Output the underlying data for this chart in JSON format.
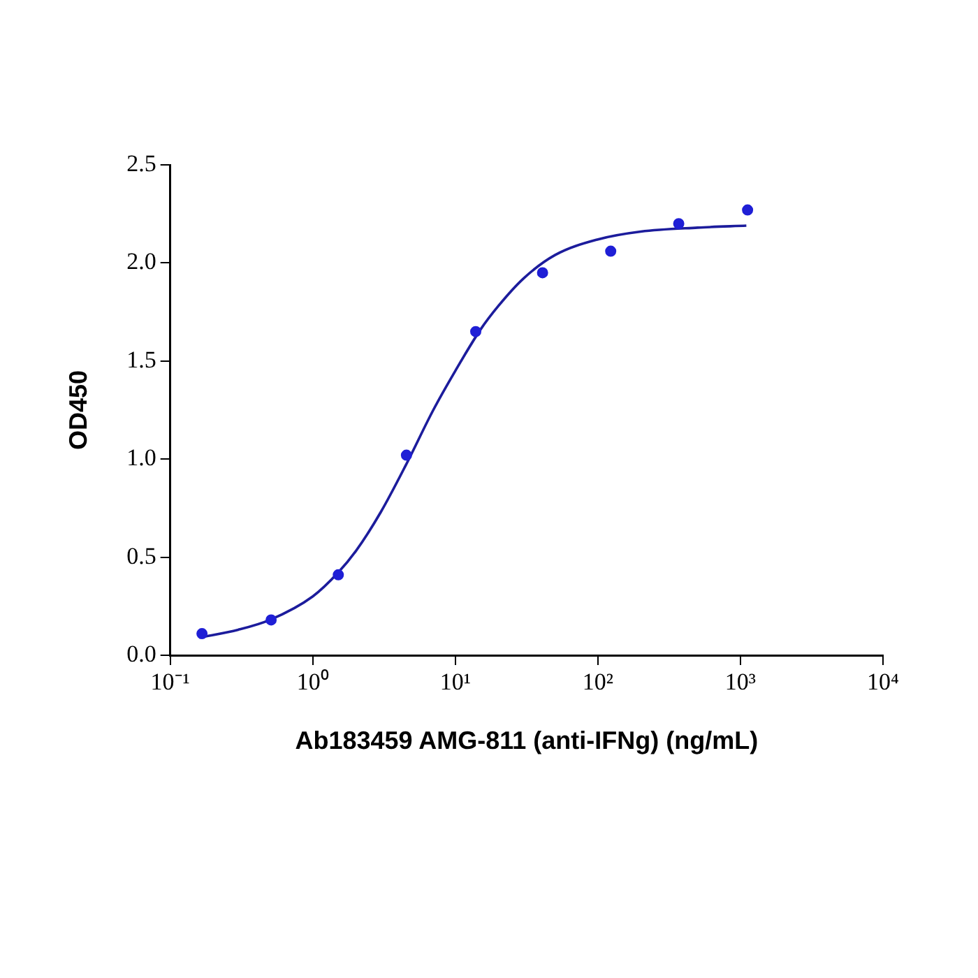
{
  "chart_data": {
    "type": "scatter",
    "xlabel": "Ab183459 AMG-811 (anti-IFNg) (ng/mL)",
    "ylabel": "OD450",
    "log": "x",
    "grid": false,
    "legend": false,
    "marker": "circle",
    "xlim": [
      0.1,
      10000
    ],
    "xticks": [
      {
        "value": 0.1,
        "label": "10⁻¹"
      },
      {
        "value": 1,
        "label": "10⁰"
      },
      {
        "value": 10,
        "label": "10¹"
      },
      {
        "value": 100,
        "label": "10²"
      },
      {
        "value": 1000,
        "label": "10³"
      },
      {
        "value": 10000,
        "label": "10⁴"
      }
    ],
    "ylim": [
      0,
      2.5
    ],
    "yticks": [
      {
        "value": 0,
        "label": "0.0"
      },
      {
        "value": 0.5,
        "label": "0.5"
      },
      {
        "value": 1,
        "label": "1.0"
      },
      {
        "value": 1.5,
        "label": "1.5"
      },
      {
        "value": 2,
        "label": "2.0"
      },
      {
        "value": 2.5,
        "label": "2.5"
      }
    ],
    "series": [
      {
        "type": "scatter",
        "color": "#1f1fd6",
        "x": [
          0.167,
          0.51,
          1.51,
          4.54,
          13.9,
          40.9,
          123,
          369,
          1122
        ],
        "values": [
          0.11,
          0.18,
          0.41,
          1.02,
          1.65,
          1.95,
          2.06,
          2.2,
          2.27
        ]
      },
      {
        "type": "line",
        "color": "#1c1c9c",
        "marker": "none",
        "line_style": "solid",
        "x": [
          0.16,
          0.3,
          0.5,
          1,
          1.5,
          2,
          3,
          4.5,
          7,
          10,
          15,
          20,
          30,
          50,
          100,
          200,
          500,
          1100
        ],
        "values": [
          0.09,
          0.13,
          0.18,
          0.3,
          0.42,
          0.53,
          0.73,
          0.97,
          1.25,
          1.45,
          1.66,
          1.78,
          1.92,
          2.04,
          2.12,
          2.16,
          2.18,
          2.19
        ]
      }
    ]
  }
}
